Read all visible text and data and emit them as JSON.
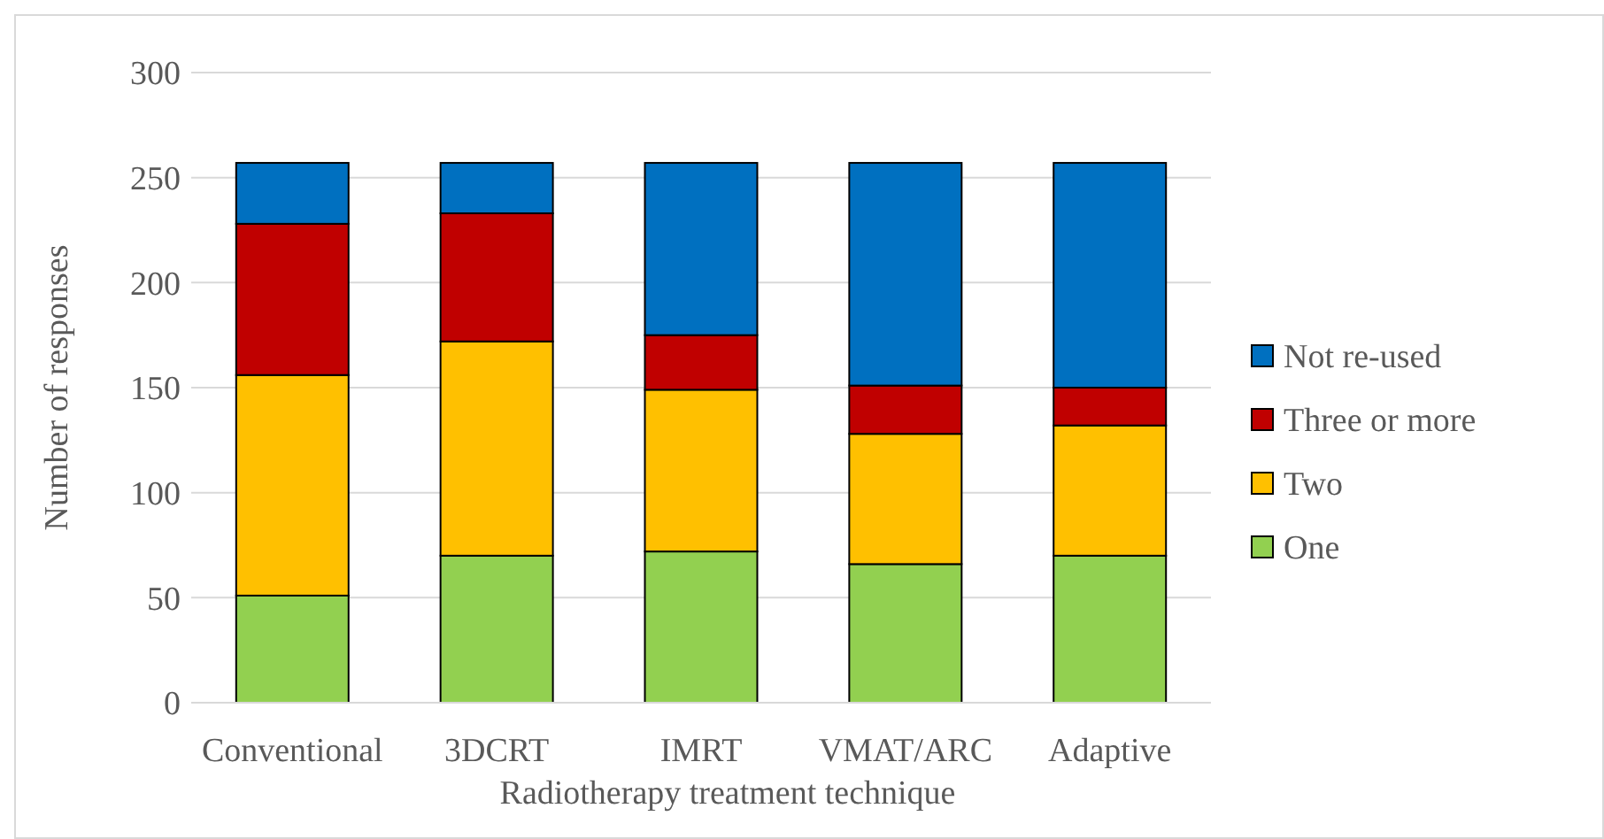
{
  "chart_data": {
    "type": "bar",
    "stacked": true,
    "xlabel": "Radiotherapy treatment technique",
    "ylabel": "Number of responses",
    "categories": [
      "Conventional",
      "3DCRT",
      "IMRT",
      "VMAT/ARC",
      "Adaptive"
    ],
    "series": [
      {
        "name": "One",
        "color": "#92d050",
        "values": [
          51,
          70,
          72,
          66,
          70
        ]
      },
      {
        "name": "Two",
        "color": "#ffc000",
        "values": [
          105,
          102,
          77,
          62,
          62
        ]
      },
      {
        "name": "Three or more",
        "color": "#c00000",
        "values": [
          72,
          61,
          26,
          23,
          18
        ]
      },
      {
        "name": "Not re-used",
        "color": "#0070c0",
        "values": [
          29,
          24,
          82,
          106,
          107
        ]
      }
    ],
    "ylim": [
      0,
      300
    ],
    "yticks": [
      0,
      50,
      100,
      150,
      200,
      250,
      300
    ],
    "grid": "y",
    "legend": "right"
  }
}
